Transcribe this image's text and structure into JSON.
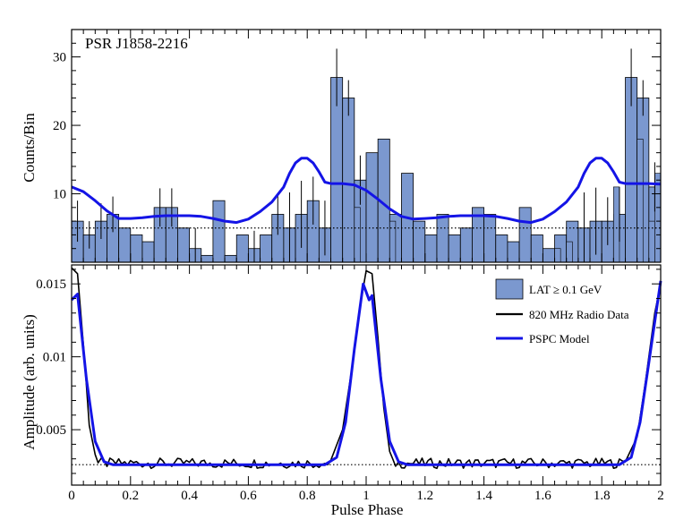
{
  "chart_data": [
    {
      "type": "histogram",
      "name": "gamma-ray light curve",
      "annotation": "PSR J1858-2216",
      "xlabel": "",
      "ylabel": "Counts/Bin",
      "xlim": [
        0,
        2
      ],
      "ylim": [
        0,
        34
      ],
      "yticks": [
        10,
        20,
        30
      ],
      "bins": 50,
      "bin_width": 0.04,
      "counts": [
        6,
        4,
        6,
        7,
        5,
        4,
        3,
        8,
        8,
        5,
        2,
        1,
        9,
        1,
        4,
        2,
        4,
        7,
        5,
        7,
        9,
        5,
        27,
        24,
        12,
        16,
        18,
        7,
        13,
        6,
        4,
        7,
        4,
        5,
        8,
        7,
        4,
        3,
        8,
        4,
        2,
        4,
        6,
        5,
        6,
        6,
        7,
        27,
        24,
        11
      ],
      "extra_bars": [
        [
          0.96,
          8
        ],
        [
          1.08,
          6
        ],
        [
          1.64,
          2
        ],
        [
          1.68,
          3
        ],
        [
          1.84,
          11
        ],
        [
          1.92,
          18
        ],
        [
          1.96,
          6
        ],
        [
          1.98,
          13
        ]
      ],
      "errors": [
        [
          0.02,
          3.0
        ],
        [
          0.06,
          2.0
        ],
        [
          0.1,
          2.6
        ],
        [
          0.14,
          2.6
        ],
        [
          0.3,
          2.8
        ],
        [
          0.34,
          2.8
        ],
        [
          0.42,
          3.0
        ],
        [
          0.62,
          2.6
        ],
        [
          0.7,
          3.0
        ],
        [
          0.74,
          5.2
        ],
        [
          0.78,
          4.9
        ],
        [
          0.82,
          3.5
        ],
        [
          0.86,
          4.0
        ],
        [
          0.9,
          4.2
        ],
        [
          0.94,
          2.6
        ],
        [
          0.98,
          3.6
        ],
        [
          1.74,
          5.2
        ],
        [
          1.78,
          4.9
        ],
        [
          1.82,
          3.5
        ],
        [
          1.86,
          4.0
        ],
        [
          1.9,
          4.2
        ],
        [
          1.94,
          2.6
        ],
        [
          1.98,
          3.6
        ]
      ],
      "background_level": 5.0,
      "model_curve": {
        "x": [
          0.0,
          0.04,
          0.08,
          0.12,
          0.16,
          0.2,
          0.24,
          0.28,
          0.32,
          0.36,
          0.4,
          0.44,
          0.48,
          0.52,
          0.56,
          0.6,
          0.64,
          0.68,
          0.72,
          0.74,
          0.76,
          0.78,
          0.8,
          0.82,
          0.84,
          0.86,
          0.88,
          0.92,
          0.96,
          1.0,
          1.04,
          1.08,
          1.12,
          1.16,
          1.2,
          1.24,
          1.28,
          1.32,
          1.36,
          1.4,
          1.44,
          1.48,
          1.52,
          1.56,
          1.6,
          1.64,
          1.68,
          1.72,
          1.74,
          1.76,
          1.78,
          1.8,
          1.82,
          1.84,
          1.86,
          1.88,
          1.92,
          1.96,
          2.0
        ],
        "y": [
          11.0,
          10.3,
          9.0,
          7.5,
          6.4,
          6.4,
          6.5,
          6.7,
          6.8,
          6.8,
          6.8,
          6.7,
          6.4,
          6.0,
          5.8,
          6.3,
          7.4,
          8.8,
          11.0,
          13.0,
          14.5,
          15.2,
          15.2,
          14.5,
          13.2,
          11.7,
          11.5,
          11.5,
          11.3,
          10.5,
          9.2,
          7.8,
          6.7,
          6.3,
          6.4,
          6.5,
          6.7,
          6.8,
          6.8,
          6.8,
          6.7,
          6.4,
          6.0,
          5.8,
          6.3,
          7.4,
          8.8,
          11.0,
          13.0,
          14.5,
          15.2,
          15.2,
          14.5,
          13.2,
          11.7,
          11.5,
          11.5,
          11.5,
          11.4
        ]
      }
    },
    {
      "type": "line",
      "name": "radio profile and model",
      "xlabel": "Pulse Phase",
      "ylabel": "Amplitude (arb. units)",
      "xlim": [
        0,
        2
      ],
      "ylim": [
        0.0012,
        0.0163
      ],
      "xticks": [
        0,
        0.2,
        0.4,
        0.6,
        0.8,
        1,
        1.2,
        1.4,
        1.6,
        1.8,
        2
      ],
      "xtick_labels": [
        "0",
        "0.2",
        "0.4",
        "0.6",
        "0.8",
        "1",
        "1.2",
        "1.4",
        "1.6",
        "1.8",
        "2"
      ],
      "yticks": [
        0.005,
        0.01,
        0.015
      ],
      "ytick_labels": [
        "0.005",
        "0.01",
        "0.015"
      ],
      "baseline_level": 0.0026,
      "radio_baseline": 0.0027,
      "radio_noise_amplitude": 0.00035,
      "radio_peak_points": [
        [
          0.0,
          0.0161
        ],
        [
          0.02,
          0.0157
        ],
        [
          0.04,
          0.0108
        ],
        [
          0.06,
          0.0053
        ],
        [
          0.08,
          0.0033
        ],
        [
          0.88,
          0.0029
        ],
        [
          0.92,
          0.005
        ],
        [
          0.95,
          0.009
        ],
        [
          0.98,
          0.0135
        ],
        [
          1.0,
          0.0159
        ],
        [
          1.02,
          0.0157
        ],
        [
          1.04,
          0.0113
        ],
        [
          1.06,
          0.0065
        ],
        [
          1.08,
          0.0035
        ],
        [
          1.88,
          0.0028
        ],
        [
          1.92,
          0.0045
        ],
        [
          1.95,
          0.0085
        ],
        [
          1.98,
          0.013
        ],
        [
          2.0,
          0.015
        ]
      ],
      "model_points": [
        [
          0.0,
          0.0139
        ],
        [
          0.02,
          0.0143
        ],
        [
          0.05,
          0.0085
        ],
        [
          0.08,
          0.0042
        ],
        [
          0.11,
          0.0028
        ],
        [
          0.14,
          0.0026
        ],
        [
          0.86,
          0.0026
        ],
        [
          0.9,
          0.0031
        ],
        [
          0.93,
          0.0055
        ],
        [
          0.96,
          0.0105
        ],
        [
          0.99,
          0.015
        ],
        [
          1.01,
          0.0139
        ],
        [
          1.02,
          0.0142
        ],
        [
          1.05,
          0.0085
        ],
        [
          1.08,
          0.0042
        ],
        [
          1.11,
          0.0028
        ],
        [
          1.14,
          0.0026
        ],
        [
          1.86,
          0.0026
        ],
        [
          1.9,
          0.0031
        ],
        [
          1.93,
          0.0055
        ],
        [
          1.96,
          0.0096
        ],
        [
          2.0,
          0.0152
        ]
      ],
      "legend": [
        "LAT ≥ 0.1 GeV",
        "820 MHz Radio Data",
        "PSPC Model"
      ],
      "legend_position": "top-right"
    }
  ],
  "colors": {
    "histogram_fill": "#7b98cf",
    "model": "#1414e6",
    "radio": "#000000",
    "axis": "#000000"
  }
}
